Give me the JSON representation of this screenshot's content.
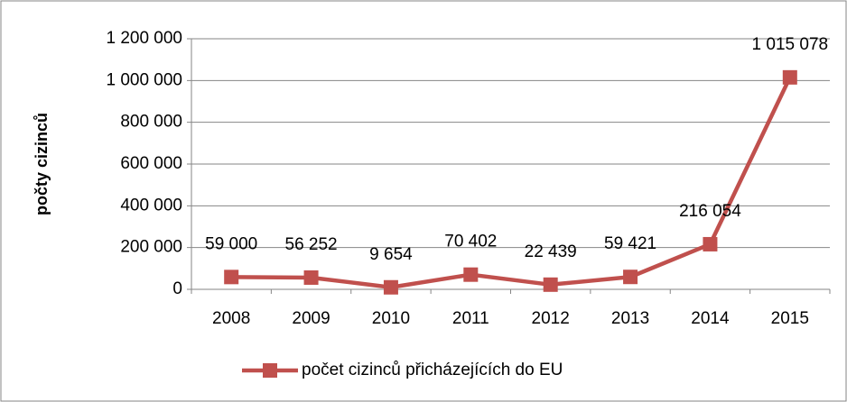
{
  "chart_data": {
    "type": "line",
    "y_label": "počty cizinců",
    "categories": [
      "2008",
      "2009",
      "2010",
      "2011",
      "2012",
      "2013",
      "2014",
      "2015"
    ],
    "series": [
      {
        "name": "počet cizinců přicházejících do EU",
        "color": "#c0504d",
        "values": [
          59000,
          56252,
          9654,
          70402,
          22439,
          59421,
          216054,
          1015078
        ],
        "value_labels": [
          "59 000",
          "56 252",
          "9 654",
          "70 402",
          "22 439",
          "59 421",
          "216 054",
          "1 015 078"
        ]
      }
    ],
    "ylim": [
      0,
      1200000
    ],
    "yticks": [
      0,
      {
        "value": 200000,
        "label": "200 000"
      },
      {
        "value": 400000,
        "label": "400 000"
      },
      {
        "value": 600000,
        "label": "600 000"
      },
      {
        "value": 800000,
        "label": "800 000"
      },
      {
        "value": 1000000,
        "label": "1 000 000"
      },
      {
        "value": 1200000,
        "label": "1 200 000"
      }
    ],
    "grid": true,
    "legend": "bottom"
  }
}
